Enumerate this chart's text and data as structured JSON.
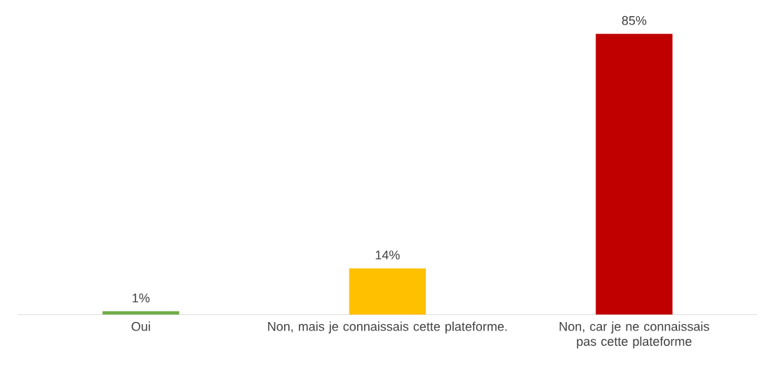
{
  "chart_data": {
    "type": "bar",
    "categories": [
      "Oui",
      "Non, mais je connaissais cette plateforme.",
      "Non, car je ne connaissais pas cette plateforme"
    ],
    "values": [
      1,
      14,
      85
    ],
    "colors": [
      "#70ad47",
      "#ffc000",
      "#c00000"
    ],
    "value_labels": [
      "1%",
      "14%",
      "85%"
    ]
  }
}
